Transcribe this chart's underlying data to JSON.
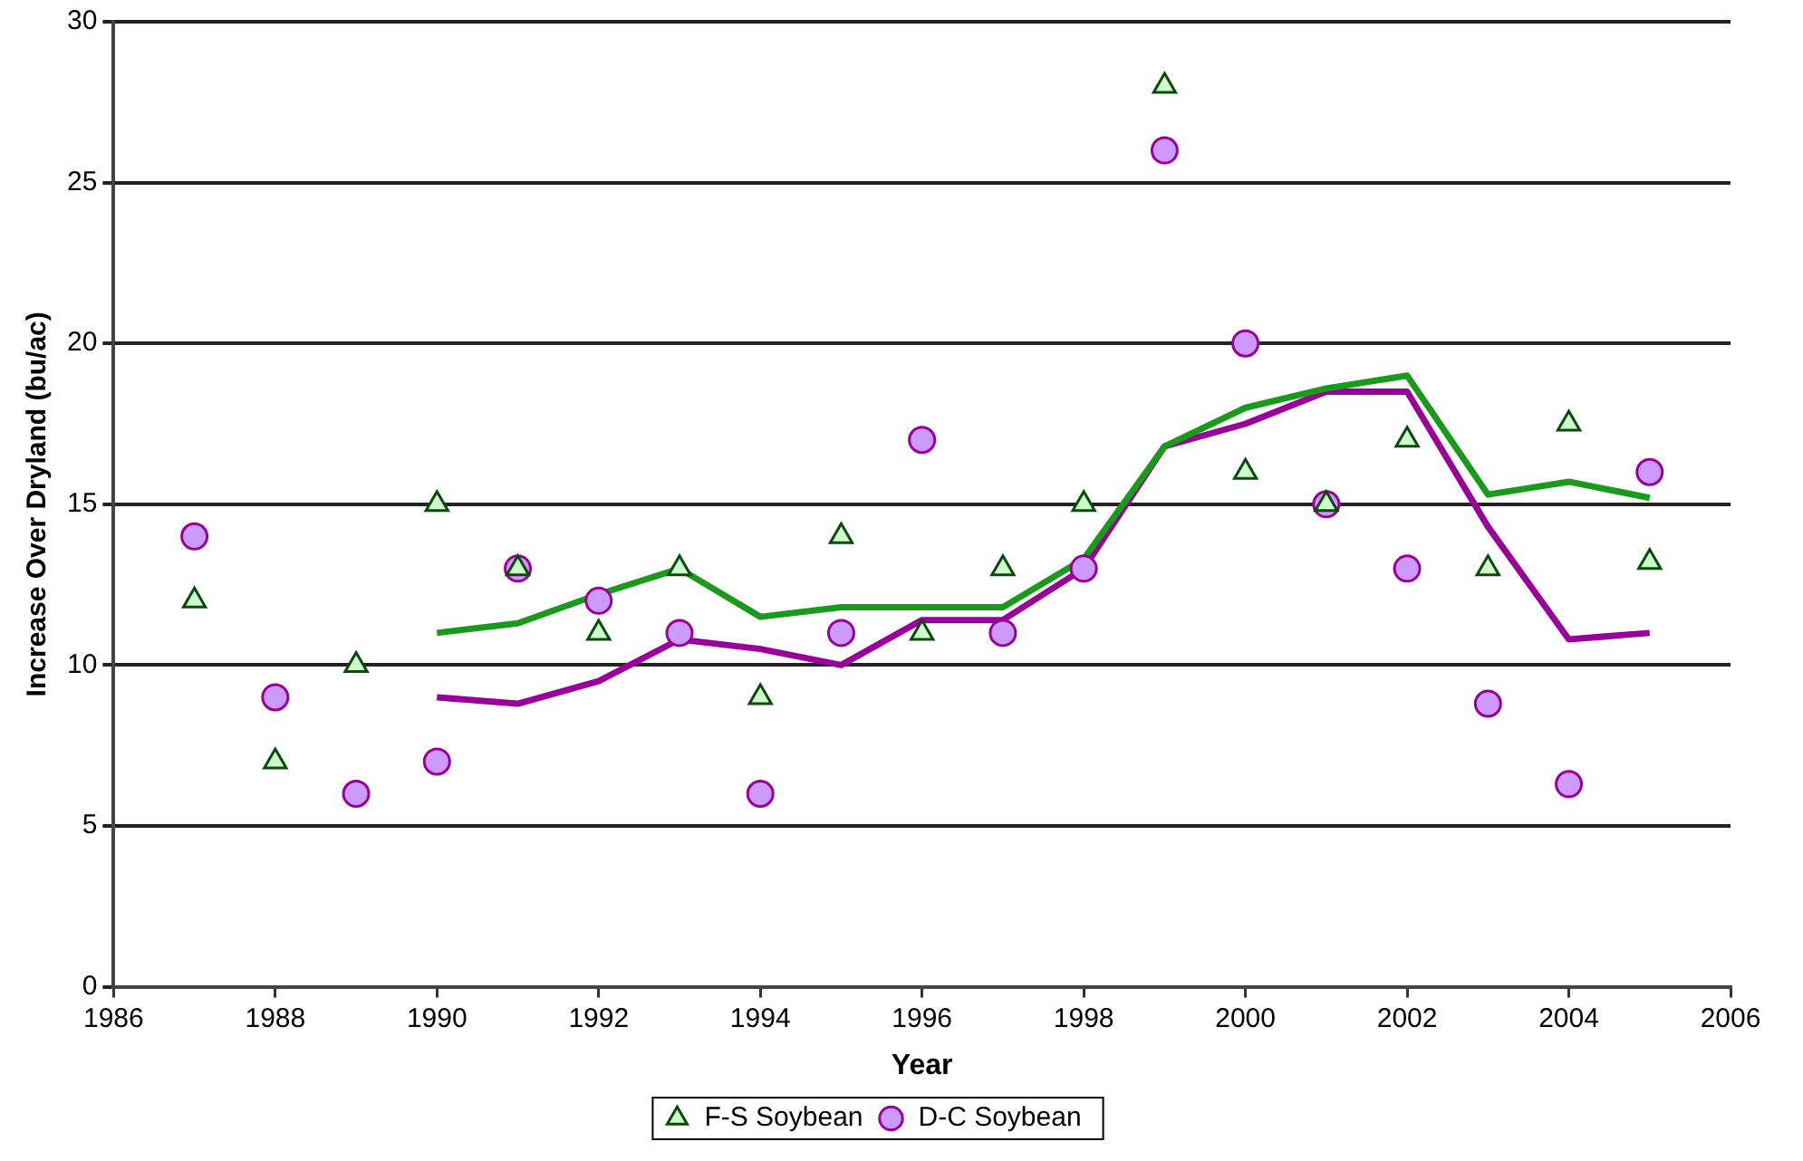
{
  "chart_data": {
    "type": "scatter",
    "xlabel": "Year",
    "ylabel": "Increase Over Dryland (bu/ac)",
    "xlim": [
      1986,
      2006
    ],
    "xticks": [
      1986,
      1988,
      1990,
      1992,
      1994,
      1996,
      1998,
      2000,
      2002,
      2004,
      2006
    ],
    "ylim": [
      0,
      30
    ],
    "yticks": [
      0,
      5,
      10,
      15,
      20,
      25,
      30
    ],
    "grid": "y",
    "legend": "bottom",
    "series": [
      {
        "type": "line",
        "color": "#1a9a1a",
        "marker": "none",
        "x": [
          1990,
          1991,
          1992,
          1993,
          1994,
          1995,
          1996,
          1997,
          1998,
          1999,
          2000,
          2001,
          2002,
          2003,
          2004,
          2005
        ],
        "values": [
          11,
          11.3,
          12.2,
          13,
          11.5,
          11.8,
          11.8,
          11.8,
          13.3,
          16.8,
          18,
          18.6,
          19,
          15.3,
          15.7,
          15.2
        ]
      },
      {
        "type": "line",
        "color": "#990099",
        "marker": "none",
        "x": [
          1990,
          1991,
          1992,
          1993,
          1994,
          1995,
          1996,
          1997,
          1998,
          1999,
          2000,
          2001,
          2002,
          2003,
          2004,
          2005
        ],
        "values": [
          9,
          8.8,
          9.5,
          10.8,
          10.5,
          10,
          11.4,
          11.4,
          13,
          16.8,
          17.5,
          18.5,
          18.5,
          14.3,
          10.8,
          11
        ]
      },
      {
        "type": "scatter",
        "name": "F-S Soybean",
        "color": "#ccffcc",
        "marker": "triangle",
        "x": [
          1987,
          1988,
          1989,
          1990,
          1991,
          1992,
          1993,
          1994,
          1995,
          1996,
          1997,
          1998,
          1999,
          2000,
          2001,
          2002,
          2003,
          2004,
          2005
        ],
        "values": [
          12,
          7,
          10,
          15,
          13,
          11,
          13,
          9,
          14,
          11,
          13,
          15,
          28,
          16,
          15,
          17,
          13,
          17.5,
          13.2
        ]
      },
      {
        "type": "scatter",
        "name": "D-C Soybean",
        "color": "#cc99ff",
        "marker": "circle",
        "x": [
          1987,
          1988,
          1989,
          1990,
          1991,
          1992,
          1993,
          1994,
          1995,
          1996,
          1997,
          1998,
          1999,
          2000,
          2001,
          2002,
          2003,
          2004,
          2005
        ],
        "values": [
          14,
          9,
          6,
          7,
          13,
          12,
          11,
          6,
          11,
          17,
          11,
          13,
          26,
          20,
          15,
          13,
          8.8,
          6.3,
          16
        ]
      }
    ]
  }
}
